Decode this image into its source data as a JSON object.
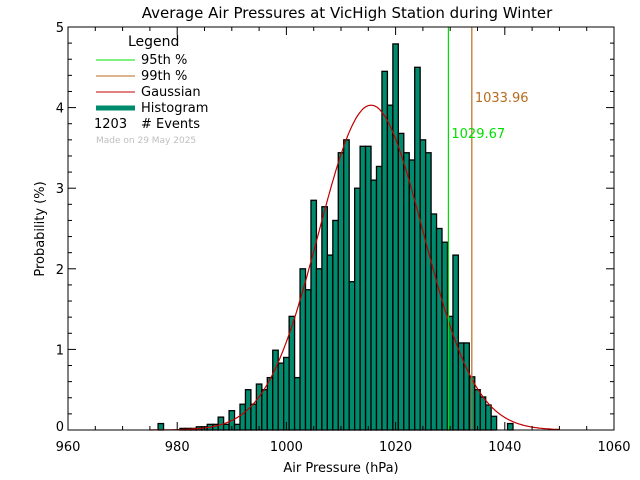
{
  "chart_data": {
    "type": "bar",
    "title": "Average Air Pressures at VicHigh Station during Winter",
    "xlabel": "Air Pressure (hPa)",
    "ylabel": "Probability (%)",
    "xlim": [
      960,
      1060
    ],
    "ylim": [
      0,
      5
    ],
    "xticks": [
      "960",
      "980",
      "1000",
      "1020",
      "1040",
      "1060"
    ],
    "yticks": [
      "0",
      "1",
      "2",
      "3",
      "4",
      "5"
    ],
    "bin_width": 1,
    "histogram": {
      "centers": [
        977,
        981,
        982,
        983,
        984,
        985,
        986,
        987,
        988,
        989,
        990,
        991,
        992,
        993,
        994,
        995,
        996,
        997,
        998,
        999,
        1000,
        1001,
        1002,
        1003,
        1004,
        1005,
        1006,
        1007,
        1008,
        1009,
        1010,
        1011,
        1012,
        1013,
        1014,
        1015,
        1016,
        1017,
        1018,
        1019,
        1020,
        1021,
        1022,
        1023,
        1024,
        1025,
        1026,
        1027,
        1028,
        1029,
        1030,
        1031,
        1032,
        1033,
        1034,
        1035,
        1036,
        1037,
        1038,
        1041
      ],
      "values": [
        0.08,
        0.02,
        0.02,
        0.02,
        0.04,
        0.04,
        0.07,
        0.07,
        0.16,
        0.07,
        0.24,
        0.07,
        0.32,
        0.5,
        0.32,
        0.57,
        0.5,
        0.65,
        0.99,
        0.83,
        0.9,
        1.41,
        0.65,
        2.0,
        1.74,
        2.85,
        2.0,
        2.77,
        2.17,
        2.6,
        3.44,
        3.6,
        1.84,
        3.0,
        3.52,
        3.52,
        3.1,
        3.27,
        4.45,
        4.03,
        4.79,
        3.68,
        3.44,
        3.35,
        4.5,
        3.6,
        3.44,
        2.68,
        2.5,
        2.33,
        1.41,
        2.17,
        1.08,
        1.08,
        0.66,
        0.5,
        0.41,
        0.31,
        0.17,
        0.08
      ]
    },
    "gaussian": {
      "mean": 1015.5,
      "sigma": 9.6,
      "peak": 4.03,
      "range": [
        975,
        1050
      ]
    },
    "percentile_95": {
      "value": 1029.67,
      "label": "1029.67"
    },
    "percentile_99": {
      "value": 1033.96,
      "label": "1033.96"
    },
    "legend": {
      "title": "Legend",
      "placement": "top-left",
      "items": [
        "95th %",
        "99th %",
        "Gaussian",
        "Histogram"
      ],
      "events_count": "1203",
      "events_label": "# Events",
      "made_on": "Made on 29 May 2025"
    },
    "colors": {
      "p95": "#00e000",
      "p99": "#b86b1e",
      "gaussian": "#c00000",
      "histogram": "#008b6e",
      "made_on": "#c0c0c0"
    }
  }
}
